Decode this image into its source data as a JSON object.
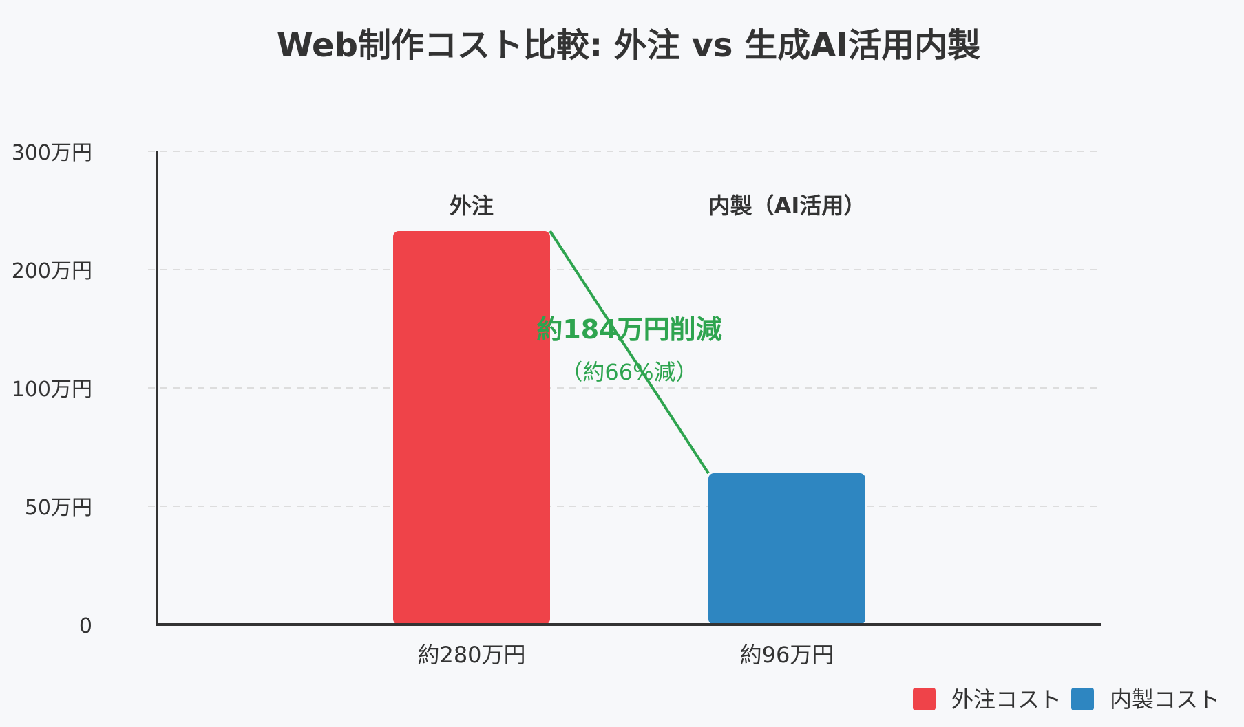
{
  "chart_data": {
    "type": "bar",
    "title": "Web制作コスト比較: 外注 vs 生成AI活用内製",
    "categories": [
      "外注",
      "内製（AI活用）"
    ],
    "value_labels": [
      "約280万円",
      "約96万円"
    ],
    "values": [
      280,
      96
    ],
    "colors": [
      "#ef4349",
      "#2e86c1"
    ],
    "y_ticks": [
      {
        "value": 0,
        "label": "0"
      },
      {
        "value": 50,
        "label": "50万円"
      },
      {
        "value": 100,
        "label": "100万円"
      },
      {
        "value": 200,
        "label": "200万円"
      },
      {
        "value": 300,
        "label": "300万円"
      }
    ],
    "grid": true,
    "legend": {
      "position": "bottom-right",
      "items": [
        {
          "label": "外注コスト",
          "color": "#ef4349"
        },
        {
          "label": "内製コスト",
          "color": "#2e86c1"
        }
      ]
    },
    "annotation": {
      "main": "約184万円削減",
      "sub": "（約66%減）",
      "color": "#2ea44f"
    }
  }
}
